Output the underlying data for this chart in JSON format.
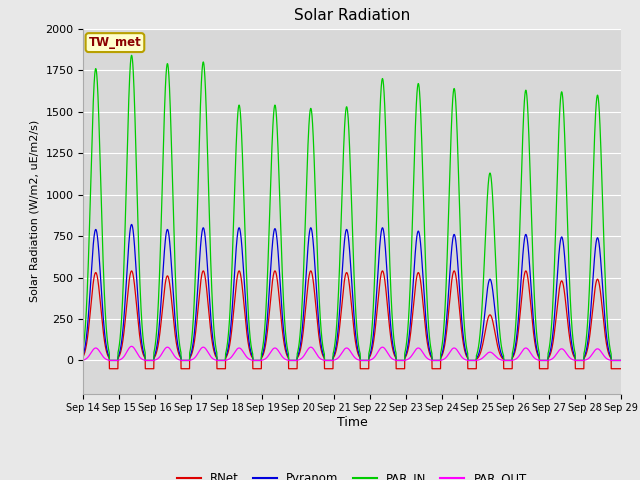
{
  "title": "Solar Radiation",
  "ylabel": "Solar Radiation (W/m2, uE/m2/s)",
  "xlabel": "Time",
  "ylim": [
    -200,
    2000
  ],
  "fig_bg_color": "#e8e8e8",
  "plot_bg_color": "#d8d8d8",
  "x_tick_labels": [
    "Sep 14",
    "Sep 15",
    "Sep 16",
    "Sep 17",
    "Sep 18",
    "Sep 19",
    "Sep 20",
    "Sep 21",
    "Sep 22",
    "Sep 23",
    "Sep 24",
    "Sep 25",
    "Sep 26",
    "Sep 27",
    "Sep 28",
    "Sep 29"
  ],
  "annotation_text": "TW_met",
  "annotation_bg": "#ffffcc",
  "annotation_border": "#b8a000",
  "annotation_text_color": "#8b0000",
  "legend_entries": [
    "RNet",
    "Pyranom",
    "PAR_IN",
    "PAR_OUT"
  ],
  "line_colors": [
    "#dd0000",
    "#0000dd",
    "#00cc00",
    "#ff00ff"
  ],
  "peak_centers": [
    0.35,
    1.35,
    2.35,
    3.35,
    4.35,
    5.35,
    6.35,
    7.35,
    8.35,
    9.35,
    10.35,
    11.35,
    12.35,
    13.35,
    14.35
  ],
  "rnet_peak_vals": [
    530,
    540,
    510,
    540,
    540,
    540,
    540,
    530,
    540,
    530,
    540,
    275,
    540,
    480,
    490
  ],
  "pyranom_peak_vals": [
    790,
    820,
    790,
    800,
    800,
    795,
    800,
    790,
    800,
    780,
    760,
    490,
    760,
    745,
    740
  ],
  "par_in_peak_vals": [
    1760,
    1840,
    1790,
    1800,
    1540,
    1540,
    1520,
    1530,
    1700,
    1670,
    1640,
    1130,
    1630,
    1620,
    1600
  ],
  "par_out_peak_vals": [
    75,
    85,
    80,
    80,
    75,
    75,
    80,
    75,
    80,
    75,
    75,
    50,
    75,
    70,
    70
  ],
  "rnet_night": -50,
  "peak_sigma": 0.14,
  "peak_cutoff": 0.38
}
